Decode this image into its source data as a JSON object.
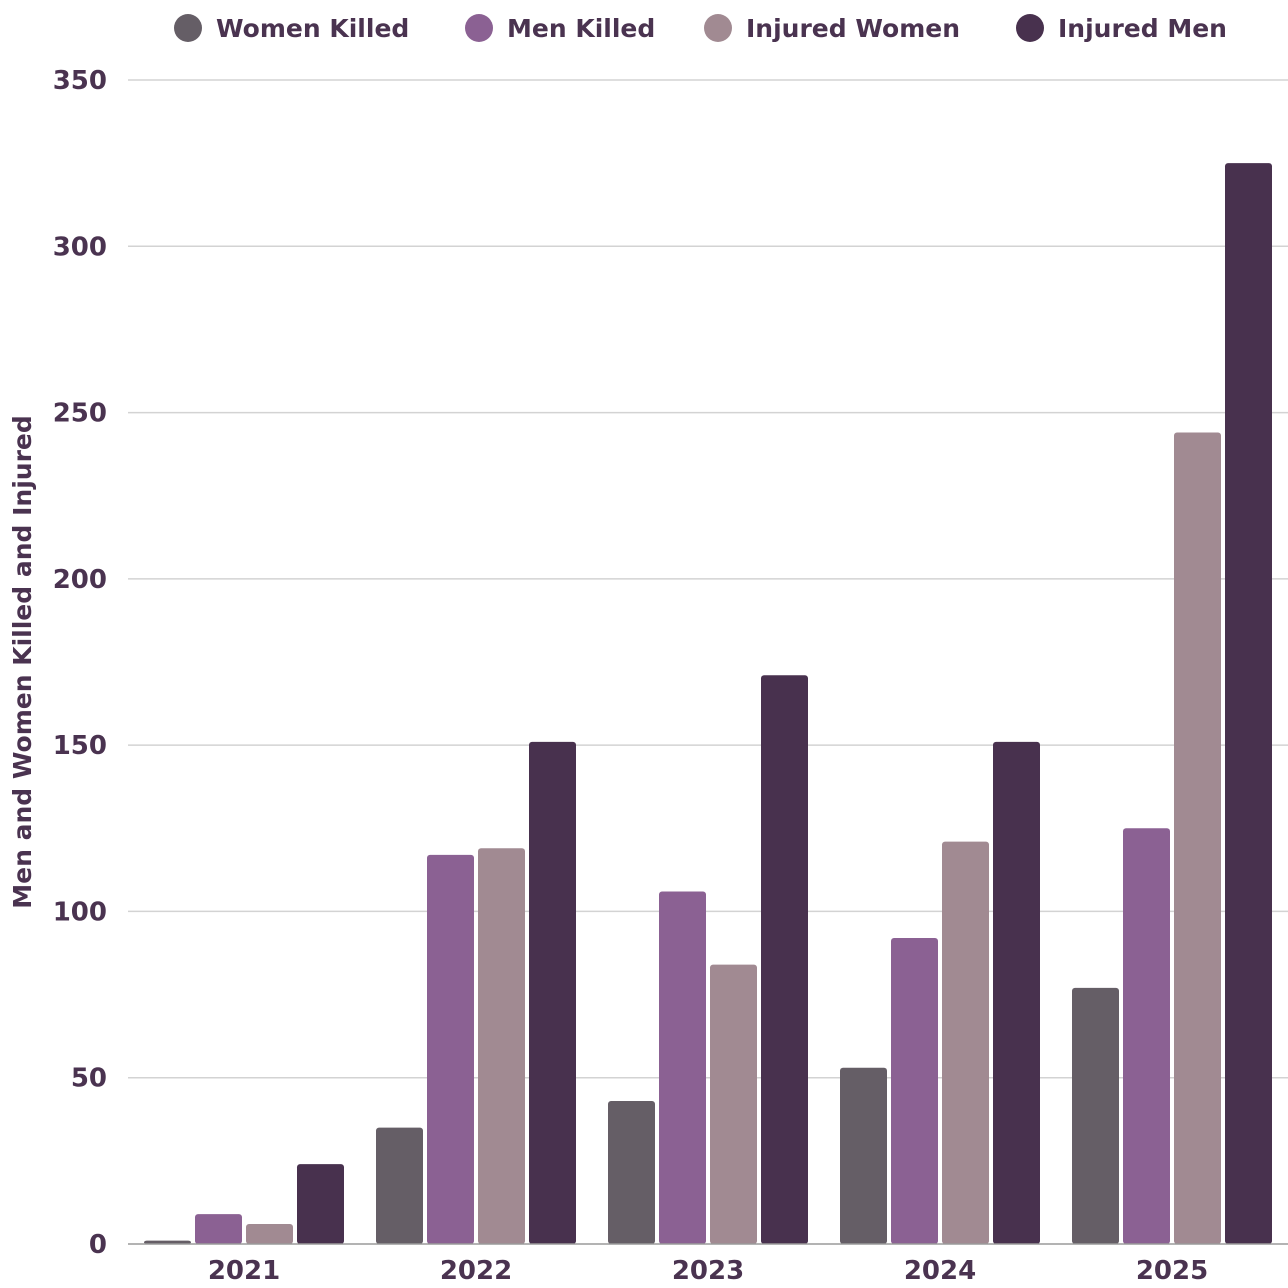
{
  "chart_data": {
    "type": "bar",
    "title": "",
    "xlabel": "",
    "ylabel": "Men and Women Killed and Injured",
    "categories": [
      "2021",
      "2022",
      "2023",
      "2024",
      "2025"
    ],
    "series": [
      {
        "name": "Women Killed",
        "color": "#655e66",
        "values": [
          1,
          35,
          43,
          53,
          77
        ]
      },
      {
        "name": "Men Killed",
        "color": "#8b6193",
        "values": [
          9,
          117,
          106,
          92,
          125
        ]
      },
      {
        "name": "Injured Women",
        "color": "#a18a92",
        "values": [
          6,
          119,
          84,
          121,
          244
        ]
      },
      {
        "name": "Injured Men",
        "color": "#48314e",
        "values": [
          24,
          151,
          171,
          151,
          325
        ]
      }
    ],
    "ylim": [
      0,
      350
    ],
    "yticks": [
      "0",
      "50",
      "100",
      "150",
      "200",
      "250",
      "300",
      "350"
    ],
    "grid": true,
    "legend_position": "top"
  }
}
